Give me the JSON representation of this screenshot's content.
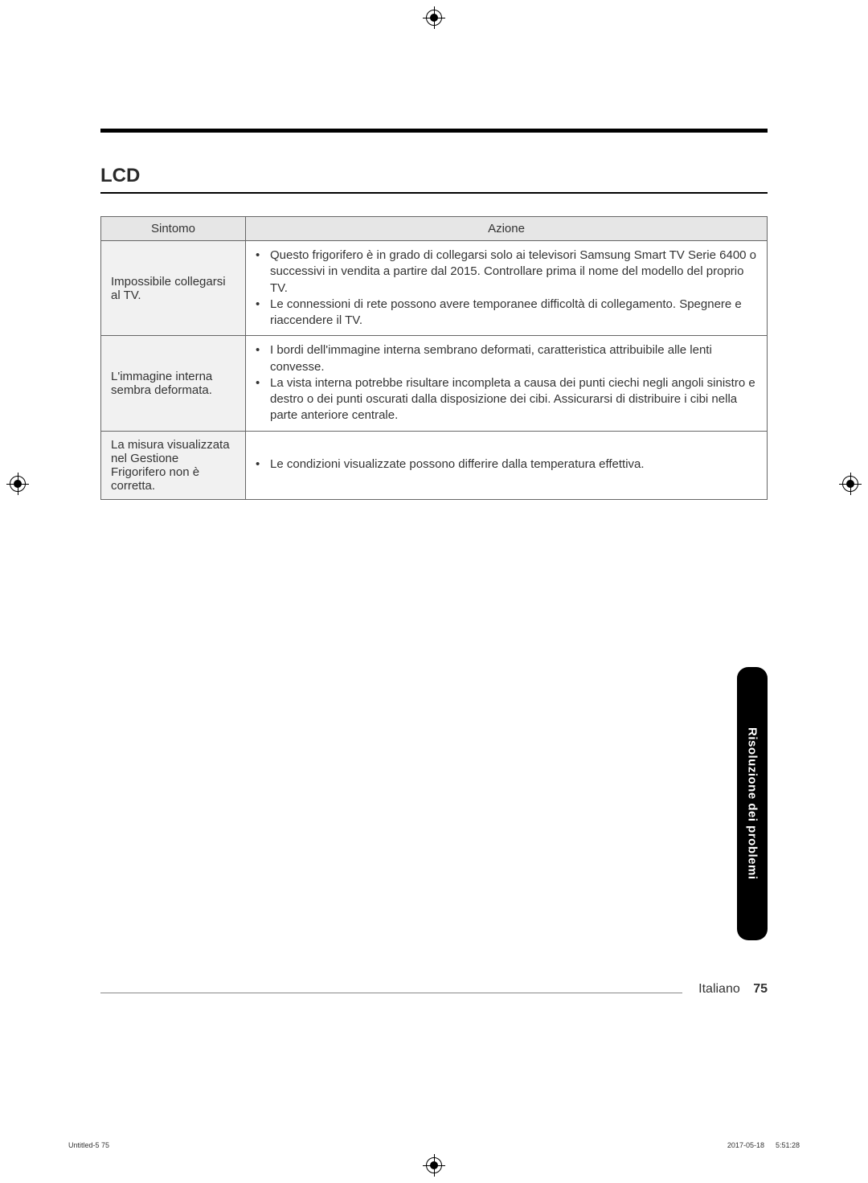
{
  "section_title": "LCD",
  "table": {
    "headers": {
      "col1": "Sintomo",
      "col2": "Azione"
    },
    "rows": [
      {
        "symptom": "Impossibile collegarsi al TV.",
        "actions": [
          "Questo frigorifero è in grado di collegarsi solo ai televisori Samsung Smart TV Serie 6400 o successivi in vendita a partire dal 2015. Controllare prima il nome del modello del proprio TV.",
          "Le connessioni di rete possono avere temporanee difficoltà di collegamento. Spegnere e riaccendere il TV."
        ]
      },
      {
        "symptom": "L'immagine interna sembra deformata.",
        "actions": [
          "I bordi dell'immagine interna sembrano deformati, caratteristica attribuibile alle lenti convesse.",
          "La vista interna potrebbe risultare incompleta a causa dei punti ciechi negli angoli sinistro e destro o dei punti oscurati dalla disposizione dei cibi. Assicurarsi di distribuire i cibi nella parte anteriore centrale."
        ]
      },
      {
        "symptom": "La misura visualizzata nel Gestione Frigorifero non è corretta.",
        "actions": [
          "Le condizioni visualizzate possono differire dalla temperatura effettiva."
        ]
      }
    ]
  },
  "side_tab": "Risoluzione dei problemi",
  "footer": {
    "language": "Italiano",
    "page_number": "75"
  },
  "meta": {
    "left": "Untitled-5   75",
    "right": "2017-05-18      5:51:28"
  }
}
